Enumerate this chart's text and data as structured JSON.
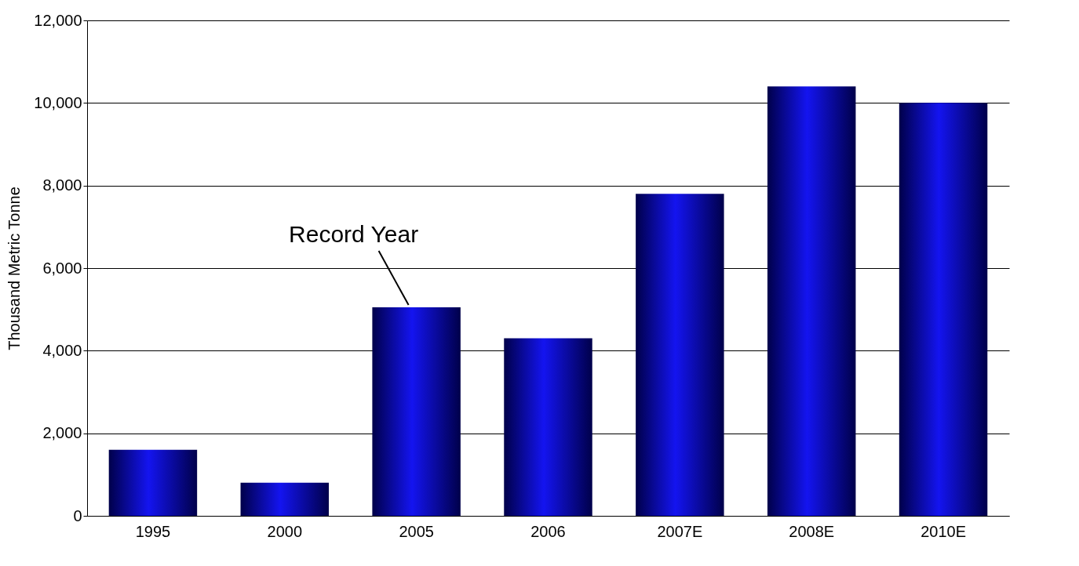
{
  "chart_data": {
    "type": "bar",
    "ylabel": "Thousand Metric Tonne",
    "categories": [
      "1995",
      "2000",
      "2005",
      "2006",
      "2007E",
      "2008E",
      "2010E"
    ],
    "values": [
      1600,
      800,
      5050,
      4300,
      7800,
      10400,
      10000
    ],
    "color": "#1414f0",
    "ylim": [
      0,
      12000
    ],
    "yticks": [
      0,
      {
        "value": 2000,
        "label": "2,000"
      },
      {
        "value": 4000,
        "label": "4,000"
      },
      {
        "value": 6000,
        "label": "6,000"
      },
      {
        "value": 8000,
        "label": "8,000"
      },
      {
        "value": 10000,
        "label": "10,000"
      },
      {
        "value": 12000,
        "label": "12,000"
      }
    ],
    "grid": "y",
    "annotations": [
      {
        "text": "Record Year",
        "x": "2005",
        "y": 5050
      }
    ]
  }
}
